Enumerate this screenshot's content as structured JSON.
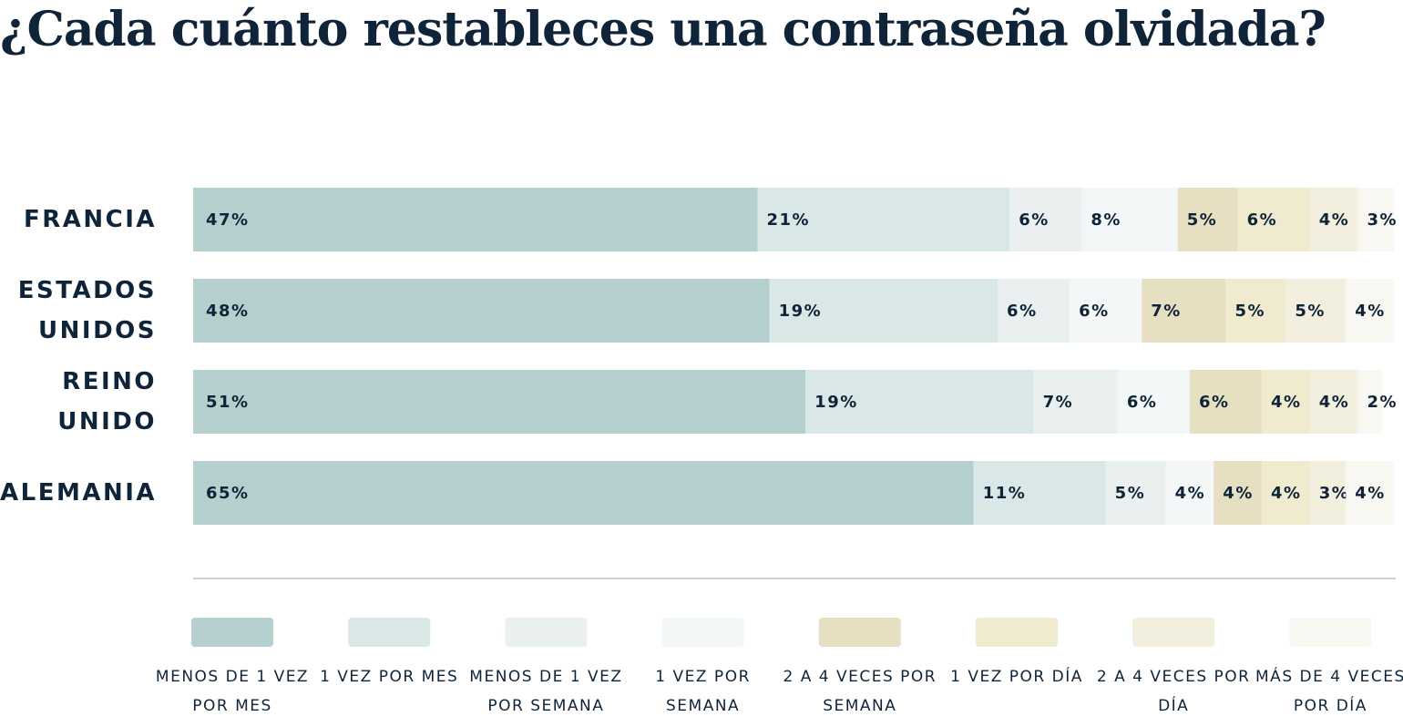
{
  "chart_data": {
    "type": "stacked-bar",
    "title": "¿Cada cuánto restableces una contraseña olvidada?",
    "categories": [
      "FRANCIA",
      "ESTADOS UNIDOS",
      "REINO UNIDO",
      "ALEMANIA"
    ],
    "xlim": [
      0,
      100
    ],
    "series": [
      {
        "name": "MENOS DE 1 VEZ POR MES",
        "color": "#b5cfcf",
        "values": [
          47,
          48,
          51,
          65
        ],
        "value_labels": [
          "47%",
          "48%",
          "51%",
          "65%"
        ]
      },
      {
        "name": "1 VEZ POR MES",
        "color": "#d9e7e6",
        "values": [
          21,
          19,
          19,
          11
        ],
        "value_labels": [
          "21%",
          "19%",
          "19%",
          "11%"
        ]
      },
      {
        "name": "MENOS DE 1 VEZ POR SEMANA",
        "color": "#e9f0ef",
        "values": [
          6,
          6,
          7,
          5
        ],
        "value_labels": [
          "6%",
          "6%",
          "7%",
          "5%"
        ]
      },
      {
        "name": "1 VEZ POR SEMANA",
        "color": "#f3f7f7",
        "values": [
          8,
          6,
          6,
          4
        ],
        "value_labels": [
          "8%",
          "6%",
          "6%",
          "4%"
        ]
      },
      {
        "name": "2 A 4 VECES POR SEMANA",
        "color": "#e6dfc1",
        "values": [
          5,
          7,
          6,
          4
        ],
        "value_labels": [
          "5%",
          "7%",
          "6%",
          "4%"
        ]
      },
      {
        "name": "1 VEZ POR DÍA",
        "color": "#f0eacf",
        "values": [
          6,
          5,
          4,
          4
        ],
        "value_labels": [
          "6%",
          "5%",
          "4%",
          "4%"
        ]
      },
      {
        "name": "2 A 4 VECES POR DÍA",
        "color": "#f3efdf",
        "values": [
          4,
          5,
          4,
          3
        ],
        "value_labels": [
          "4%",
          "5%",
          "4%",
          "3%"
        ]
      },
      {
        "name": "MÁS DE 4 VECES POR DÍA",
        "color": "#f8f7f1",
        "values": [
          3,
          4,
          2,
          4
        ],
        "value_labels": [
          "3%",
          "4%",
          "2%",
          "4%"
        ]
      }
    ]
  }
}
